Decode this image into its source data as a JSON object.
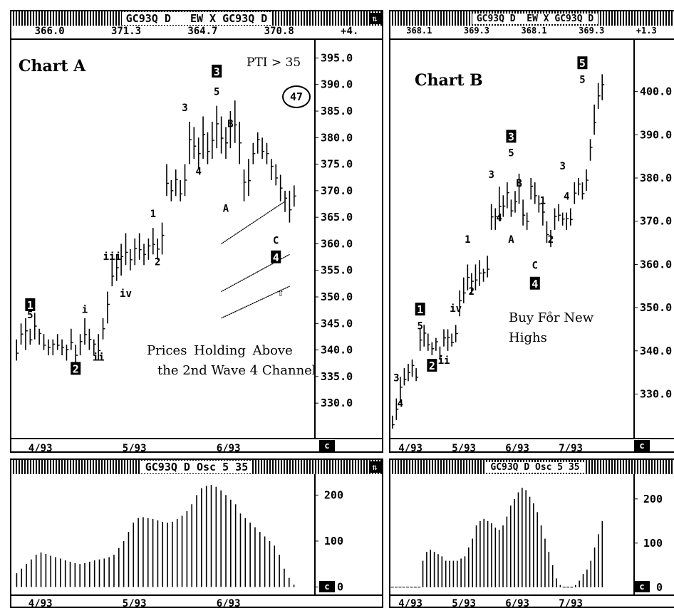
{
  "chart_a": {
    "title_bar": "GC93Q D   EW X GC93Q D",
    "values": [
      "366.0",
      "371.3",
      "364.7",
      "370.8",
      "+4."
    ],
    "label": "Chart A",
    "pti": "PTI > 35",
    "circle": "47",
    "note_line1": "Prices Holding Above",
    "note_line2": "the 2nd Wave 4 Channel",
    "c_label": "c"
  },
  "chart_b": {
    "title_bar": "GC93Q D  EW X GC93Q D",
    "values": [
      "368.1",
      "369.3",
      "368.1",
      "369.3",
      "+1.3"
    ],
    "label": "Chart B",
    "note_line1": "Buy For New",
    "note_line2": "Highs",
    "c_label": "c"
  },
  "osc_a": {
    "title_bar": "GC93Q D Osc 5 35",
    "c_label": "c"
  },
  "osc_b": {
    "title_bar": "GC93Q D Osc 5 35",
    "c_label": "c"
  },
  "chart_data": [
    {
      "type": "bar",
      "name": "chart-a-price",
      "title": "Chart A",
      "ylim": [
        326,
        396
      ],
      "yticks": [
        "395.0",
        "390.0",
        "385.0",
        "380.0",
        "375.0",
        "370.0",
        "365.0",
        "360.0",
        "355.0",
        "350.0",
        "345.0",
        "340.0",
        "335.0",
        "330.0"
      ],
      "xticks": [
        "4/93",
        "5/93",
        "6/93"
      ],
      "bars": [
        [
          338,
          342
        ],
        [
          341,
          345
        ],
        [
          340,
          346
        ],
        [
          341,
          344
        ],
        [
          342,
          347
        ],
        [
          341,
          344
        ],
        [
          340,
          343
        ],
        [
          339,
          342
        ],
        [
          339,
          342
        ],
        [
          340,
          343
        ],
        [
          339,
          342
        ],
        [
          338,
          341
        ],
        [
          340,
          344
        ],
        [
          337,
          341
        ],
        [
          339,
          343
        ],
        [
          341,
          346
        ],
        [
          340,
          344
        ],
        [
          339,
          342
        ],
        [
          338,
          343
        ],
        [
          342,
          346
        ],
        [
          345,
          351
        ],
        [
          352,
          357
        ],
        [
          353,
          358
        ],
        [
          354,
          360
        ],
        [
          356,
          362
        ],
        [
          355,
          359
        ],
        [
          356,
          361
        ],
        [
          357,
          362
        ],
        [
          356,
          360
        ],
        [
          357,
          361
        ],
        [
          358,
          363
        ],
        [
          357,
          361
        ],
        [
          358,
          364
        ],
        [
          369,
          375
        ],
        [
          368,
          372
        ],
        [
          369,
          374
        ],
        [
          368,
          372
        ],
        [
          369,
          375
        ],
        [
          375,
          383
        ],
        [
          376,
          382
        ],
        [
          374,
          380
        ],
        [
          376,
          384
        ],
        [
          375,
          381
        ],
        [
          376,
          383
        ],
        [
          378,
          386
        ],
        [
          377,
          384
        ],
        [
          376,
          382
        ],
        [
          378,
          385
        ],
        [
          379,
          387
        ],
        [
          375,
          383
        ],
        [
          368,
          374
        ],
        [
          369,
          376
        ],
        [
          375,
          379
        ],
        [
          377,
          381
        ],
        [
          376,
          380
        ],
        [
          375,
          379
        ],
        [
          372,
          376
        ],
        [
          371,
          375
        ],
        [
          368,
          373
        ],
        [
          366,
          370
        ],
        [
          364,
          370
        ],
        [
          367,
          371
        ]
      ],
      "wave_labels": [
        {
          "text": "1",
          "boxed": true,
          "x": 3,
          "y": 348
        },
        {
          "text": "5",
          "boxed": false,
          "x": 3,
          "y": 346
        },
        {
          "text": "2",
          "boxed": true,
          "x": 13,
          "y": 336
        },
        {
          "text": "i",
          "boxed": false,
          "x": 15,
          "y": 347
        },
        {
          "text": "ii",
          "boxed": false,
          "x": 18,
          "y": 338
        },
        {
          "text": "iii",
          "boxed": false,
          "x": 21,
          "y": 357
        },
        {
          "text": "iv",
          "boxed": false,
          "x": 24,
          "y": 350
        },
        {
          "text": "1",
          "boxed": false,
          "x": 30,
          "y": 365
        },
        {
          "text": "2",
          "boxed": false,
          "x": 31,
          "y": 356
        },
        {
          "text": "3",
          "boxed": false,
          "x": 37,
          "y": 385
        },
        {
          "text": "4",
          "boxed": false,
          "x": 40,
          "y": 373
        },
        {
          "text": "3",
          "boxed": true,
          "x": 44,
          "y": 392
        },
        {
          "text": "5",
          "boxed": false,
          "x": 44,
          "y": 388
        },
        {
          "text": "B",
          "boxed": false,
          "x": 47,
          "y": 382
        },
        {
          "text": "A",
          "boxed": false,
          "x": 46,
          "y": 366
        },
        {
          "text": "C",
          "boxed": false,
          "x": 57,
          "y": 360
        },
        {
          "text": "4",
          "boxed": true,
          "x": 57,
          "y": 357
        }
      ],
      "channels": [
        [
          [
            45,
            360
          ],
          [
            59,
            368
          ]
        ],
        [
          [
            45,
            351
          ],
          [
            60,
            358
          ]
        ],
        [
          [
            45,
            346
          ],
          [
            60,
            352
          ]
        ]
      ]
    },
    {
      "type": "bar",
      "name": "chart-b-price",
      "title": "Chart B",
      "ylim": [
        323,
        409
      ],
      "yticks": [
        "400.0",
        "390.0",
        "380.0",
        "370.0",
        "360.0",
        "350.0",
        "340.0",
        "330.0"
      ],
      "xticks": [
        "4/93",
        "5/93",
        "6/93",
        "7/93"
      ],
      "bars": [
        [
          322,
          325
        ],
        [
          324,
          329
        ],
        [
          328,
          334
        ],
        [
          332,
          336
        ],
        [
          333,
          337
        ],
        [
          334,
          338
        ],
        [
          333,
          336
        ],
        [
          340,
          345
        ],
        [
          341,
          346
        ],
        [
          340,
          344
        ],
        [
          339,
          342
        ],
        [
          340,
          343
        ],
        [
          338,
          341
        ],
        [
          341,
          345
        ],
        [
          340,
          345
        ],
        [
          341,
          344
        ],
        [
          342,
          346
        ],
        [
          348,
          354
        ],
        [
          351,
          357
        ],
        [
          354,
          360
        ],
        [
          353,
          358
        ],
        [
          354,
          360
        ],
        [
          355,
          361
        ],
        [
          356,
          359
        ],
        [
          357,
          362
        ],
        [
          368,
          374
        ],
        [
          368,
          373
        ],
        [
          370,
          378
        ],
        [
          371,
          376
        ],
        [
          373,
          379
        ],
        [
          371,
          375
        ],
        [
          372,
          377
        ],
        [
          374,
          381
        ],
        [
          369,
          375
        ],
        [
          368,
          372
        ],
        [
          375,
          380
        ],
        [
          374,
          379
        ],
        [
          372,
          376
        ],
        [
          369,
          374
        ],
        [
          365,
          370
        ],
        [
          364,
          368
        ],
        [
          368,
          373
        ],
        [
          370,
          374
        ],
        [
          369,
          372
        ],
        [
          368,
          372
        ],
        [
          369,
          373
        ],
        [
          374,
          379
        ],
        [
          376,
          380
        ],
        [
          375,
          379
        ],
        [
          377,
          382
        ],
        [
          384,
          389
        ],
        [
          390,
          397
        ],
        [
          396,
          402
        ],
        [
          398,
          404
        ]
      ],
      "wave_labels": [
        {
          "text": "3",
          "boxed": false,
          "x": 1,
          "y": 333
        },
        {
          "text": "4",
          "boxed": false,
          "x": 2,
          "y": 327
        },
        {
          "text": "1",
          "boxed": true,
          "x": 7,
          "y": 349
        },
        {
          "text": "5",
          "boxed": false,
          "x": 7,
          "y": 345
        },
        {
          "text": "2",
          "boxed": true,
          "x": 10,
          "y": 336
        },
        {
          "text": "ii",
          "boxed": false,
          "x": 13,
          "y": 337
        },
        {
          "text": "iv",
          "boxed": false,
          "x": 16,
          "y": 349
        },
        {
          "text": "1",
          "boxed": false,
          "x": 19,
          "y": 365
        },
        {
          "text": "2",
          "boxed": false,
          "x": 20,
          "y": 353
        },
        {
          "text": "3",
          "boxed": false,
          "x": 25,
          "y": 380
        },
        {
          "text": "4",
          "boxed": false,
          "x": 27,
          "y": 370
        },
        {
          "text": "3",
          "boxed": true,
          "x": 30,
          "y": 389
        },
        {
          "text": "5",
          "boxed": false,
          "x": 30,
          "y": 385
        },
        {
          "text": "B",
          "boxed": false,
          "x": 32,
          "y": 378
        },
        {
          "text": "A",
          "boxed": false,
          "x": 30,
          "y": 365
        },
        {
          "text": "C",
          "boxed": false,
          "x": 36,
          "y": 359
        },
        {
          "text": "4",
          "boxed": true,
          "x": 36,
          "y": 355
        },
        {
          "text": "1",
          "boxed": false,
          "x": 38,
          "y": 374
        },
        {
          "text": "2",
          "boxed": false,
          "x": 40,
          "y": 365
        },
        {
          "text": "3",
          "boxed": false,
          "x": 43,
          "y": 382
        },
        {
          "text": "4",
          "boxed": false,
          "x": 44,
          "y": 375
        },
        {
          "text": "5",
          "boxed": true,
          "x": 48,
          "y": 406
        },
        {
          "text": "5",
          "boxed": false,
          "x": 48,
          "y": 402
        }
      ]
    },
    {
      "type": "bar",
      "name": "chart-a-oscillator",
      "title": "GC93Q D Osc 5 35",
      "ylim": [
        -10,
        230
      ],
      "yticks": [
        "200",
        "100",
        "0"
      ],
      "xticks": [
        "4/93",
        "5/93",
        "6/93"
      ],
      "values": [
        30,
        40,
        50,
        60,
        70,
        75,
        72,
        68,
        65,
        62,
        58,
        55,
        52,
        50,
        52,
        55,
        58,
        60,
        62,
        65,
        70,
        85,
        100,
        120,
        140,
        150,
        152,
        150,
        148,
        145,
        142,
        140,
        142,
        148,
        155,
        165,
        180,
        200,
        215,
        220,
        222,
        218,
        210,
        200,
        190,
        180,
        160,
        150,
        140,
        130,
        120,
        110,
        100,
        90,
        70,
        40,
        20,
        5
      ]
    },
    {
      "type": "bar",
      "name": "chart-b-oscillator",
      "title": "GC93Q D Osc 5 35",
      "ylim": [
        -10,
        240
      ],
      "yticks": [
        "200",
        "100",
        "0"
      ],
      "xticks": [
        "4/93",
        "5/93",
        "6/93",
        "7/93"
      ],
      "values": [
        0,
        0,
        0,
        0,
        0,
        0,
        0,
        0,
        60,
        80,
        85,
        80,
        75,
        70,
        60,
        60,
        60,
        60,
        65,
        70,
        90,
        110,
        140,
        150,
        155,
        150,
        145,
        135,
        130,
        140,
        160,
        185,
        200,
        215,
        225,
        220,
        205,
        190,
        170,
        140,
        110,
        80,
        50,
        20,
        5,
        0,
        0,
        0,
        5,
        15,
        30,
        40,
        60,
        90,
        120,
        150
      ]
    }
  ]
}
